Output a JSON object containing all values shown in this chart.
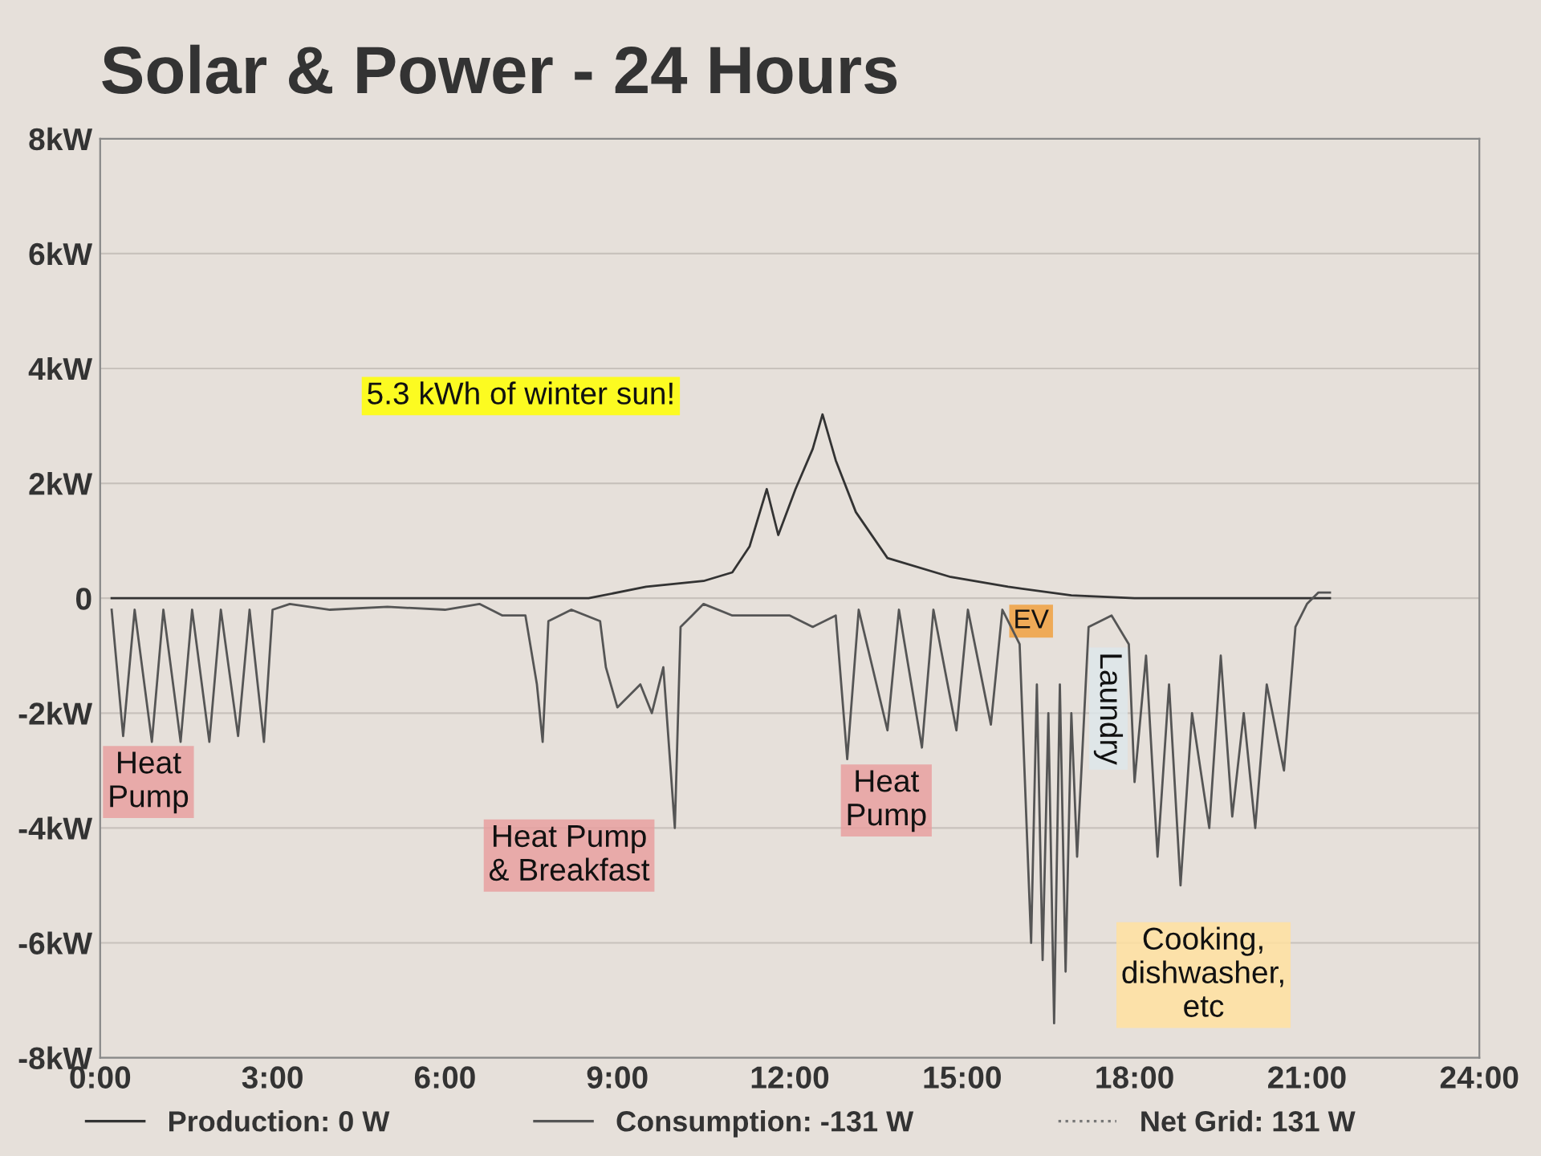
{
  "chart_data": {
    "type": "line",
    "title": "Solar & Power - 24 Hours",
    "xlim": [
      0,
      24
    ],
    "xticks": [
      {
        "value": 0,
        "label": "0:00"
      },
      {
        "value": 3,
        "label": "3:00"
      },
      {
        "value": 6,
        "label": "6:00"
      },
      {
        "value": 9,
        "label": "9:00"
      },
      {
        "value": 12,
        "label": "12:00"
      },
      {
        "value": 15,
        "label": "15:00"
      },
      {
        "value": 18,
        "label": "18:00"
      },
      {
        "value": 21,
        "label": "21:00"
      },
      {
        "value": 24,
        "label": "24:00"
      }
    ],
    "ylim": [
      -8,
      8
    ],
    "yticks": [
      {
        "value": -8,
        "label": "-8kW"
      },
      {
        "value": -6,
        "label": "-6kW"
      },
      {
        "value": -4,
        "label": "-4kW"
      },
      {
        "value": -2,
        "label": "-2kW"
      },
      0,
      {
        "value": 2,
        "label": "2kW"
      },
      {
        "value": 4,
        "label": "4kW"
      },
      {
        "value": 6,
        "label": "6kW"
      },
      {
        "value": 8,
        "label": "8kW"
      }
    ],
    "grid": "y",
    "legend": "bottom",
    "series": [
      {
        "name": "Production: 0 W",
        "color": "#333333",
        "line_style": "solid",
        "x": [
          0.2,
          8.5,
          9.5,
          10.5,
          11.0,
          11.3,
          11.6,
          11.8,
          12.1,
          12.4,
          12.57,
          12.8,
          13.15,
          13.7,
          14.8,
          15.8,
          16.9,
          18.0,
          21.4
        ],
        "values": [
          0,
          0,
          0.2,
          0.3,
          0.45,
          0.9,
          1.9,
          1.1,
          1.9,
          2.6,
          3.2,
          2.4,
          1.5,
          0.7,
          0.37,
          0.2,
          0.05,
          0,
          0
        ]
      },
      {
        "name": "Consumption: -131 W",
        "color": "#555555",
        "line_style": "solid",
        "x": [
          0.2,
          0.4,
          0.6,
          0.9,
          1.1,
          1.4,
          1.6,
          1.9,
          2.1,
          2.4,
          2.6,
          2.85,
          3.0,
          3.3,
          4.0,
          5.0,
          6.0,
          6.6,
          7.0,
          7.4,
          7.6,
          7.7,
          7.8,
          8.2,
          8.7,
          8.8,
          9.0,
          9.4,
          9.6,
          9.8,
          10.0,
          10.1,
          10.3,
          10.5,
          11.0,
          12.0,
          12.4,
          12.8,
          13.0,
          13.2,
          13.7,
          13.9,
          14.3,
          14.5,
          14.9,
          15.1,
          15.5,
          15.7,
          16.0,
          16.2,
          16.3,
          16.4,
          16.5,
          16.6,
          16.7,
          16.8,
          16.9,
          17.0,
          17.2,
          17.6,
          17.9,
          18.0,
          18.2,
          18.4,
          18.6,
          18.8,
          19.0,
          19.3,
          19.5,
          19.7,
          19.9,
          20.1,
          20.3,
          20.6,
          20.8,
          21.0,
          21.2,
          21.4
        ],
        "values": [
          -0.2,
          -2.4,
          -0.2,
          -2.5,
          -0.2,
          -2.5,
          -0.2,
          -2.5,
          -0.2,
          -2.4,
          -0.2,
          -2.5,
          -0.2,
          -0.1,
          -0.2,
          -0.15,
          -0.2,
          -0.1,
          -0.3,
          -0.3,
          -1.5,
          -2.5,
          -0.4,
          -0.2,
          -0.4,
          -1.2,
          -1.9,
          -1.5,
          -2.0,
          -1.2,
          -4.0,
          -0.5,
          -0.3,
          -0.1,
          -0.3,
          -0.3,
          -0.5,
          -0.3,
          -2.8,
          -0.2,
          -2.3,
          -0.2,
          -2.6,
          -0.2,
          -2.3,
          -0.2,
          -2.2,
          -0.2,
          -0.8,
          -6.0,
          -1.5,
          -6.3,
          -2.0,
          -7.4,
          -1.5,
          -6.5,
          -2.0,
          -4.5,
          -0.5,
          -0.3,
          -0.8,
          -3.2,
          -1.0,
          -4.5,
          -1.5,
          -5.0,
          -2.0,
          -4.0,
          -1.0,
          -3.8,
          -2.0,
          -4.0,
          -1.5,
          -3.0,
          -0.5,
          -0.1,
          0.1,
          0.1
        ]
      },
      {
        "name": "Net Grid: 131 W",
        "color": "#777777",
        "line_style": "dotted"
      }
    ],
    "annotations": [
      "5.3 kWh of winter sun!",
      "Heat\nPump",
      "Heat Pump\n& Breakfast",
      "Heat\nPump",
      "EV",
      "Laundry",
      "Cooking,\ndishwasher,\netc"
    ]
  }
}
